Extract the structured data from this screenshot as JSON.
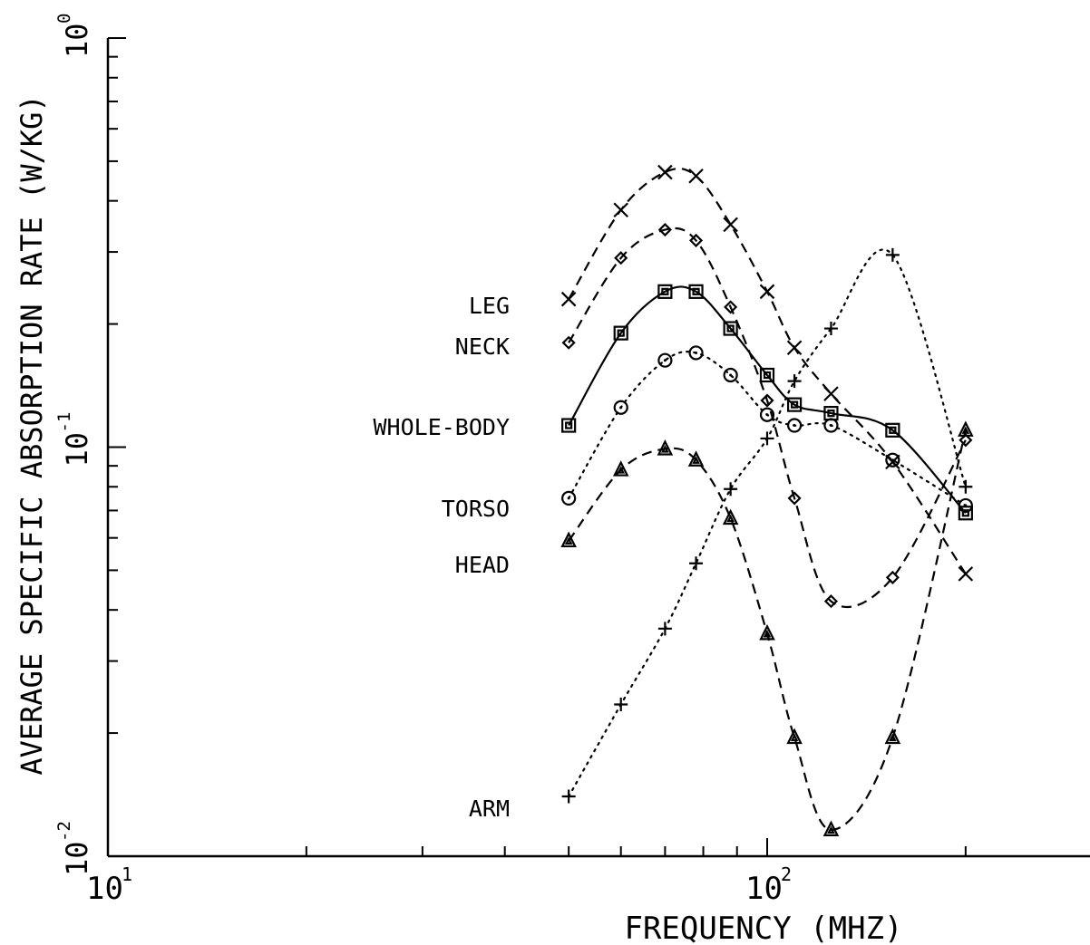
{
  "chart_data": {
    "type": "line",
    "title": "",
    "xlabel": "FREQUENCY (MHZ)",
    "ylabel": "AVERAGE SPECIFIC ABSORPTION RATE (W/KG)",
    "xscale": "log",
    "yscale": "log",
    "xlim": [
      10,
      200
    ],
    "ylim": [
      0.01,
      1
    ],
    "x_tick_labels": [
      {
        "value": 10,
        "base": "10",
        "exp": "1"
      },
      {
        "value": 100,
        "base": "10",
        "exp": "2"
      }
    ],
    "y_tick_labels": [
      {
        "value": 1,
        "base": "10",
        "exp": "0"
      },
      {
        "value": 0.1,
        "base": "10",
        "exp": "-1"
      },
      {
        "value": 0.01,
        "base": "10",
        "exp": "-2"
      }
    ],
    "x": [
      50,
      60,
      70,
      78,
      88,
      100,
      110,
      125,
      155,
      200
    ],
    "series": [
      {
        "name": "LEG",
        "line": "dashed",
        "marker": "x",
        "values": [
          0.23,
          0.38,
          0.47,
          0.46,
          0.35,
          0.24,
          0.175,
          0.135,
          0.092,
          0.049
        ]
      },
      {
        "name": "NECK",
        "line": "dashed",
        "marker": "diamond",
        "values": [
          0.18,
          0.29,
          0.34,
          0.32,
          0.22,
          0.13,
          0.075,
          0.042,
          0.048,
          0.104
        ]
      },
      {
        "name": "WHOLE-BODY",
        "line": "solid",
        "marker": "square",
        "values": [
          0.113,
          0.19,
          0.24,
          0.24,
          0.195,
          0.15,
          0.127,
          0.121,
          0.11,
          0.069
        ]
      },
      {
        "name": "TORSO",
        "line": "dotted",
        "marker": "circle",
        "values": [
          0.075,
          0.125,
          0.163,
          0.17,
          0.15,
          0.12,
          0.113,
          0.113,
          0.093,
          0.072
        ]
      },
      {
        "name": "HEAD",
        "line": "dashed",
        "marker": "triangle",
        "values": [
          0.059,
          0.088,
          0.099,
          0.093,
          0.067,
          0.035,
          0.0195,
          0.0116,
          0.0195,
          0.11
        ]
      },
      {
        "name": "ARM",
        "line": "dotted",
        "marker": "plus",
        "values": [
          0.014,
          0.0235,
          0.036,
          0.052,
          0.079,
          0.105,
          0.145,
          0.195,
          0.295,
          0.08
        ]
      }
    ],
    "grid": false,
    "legend": "series names printed at left of curves"
  }
}
